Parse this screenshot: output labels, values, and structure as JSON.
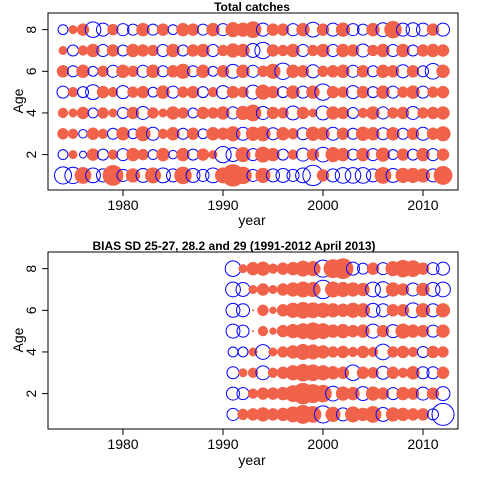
{
  "colors": {
    "positive": "#f0624a",
    "negative": "#0000ff",
    "axis": "#000000"
  },
  "chart_data": [
    {
      "type": "scatter",
      "title": "Total catches",
      "xlabel": "year",
      "ylabel": "Age",
      "xlim": [
        1972.5,
        2013.5
      ],
      "ylim": [
        0.3,
        8.8
      ],
      "xticks": [
        1980,
        1990,
        2000,
        2010
      ],
      "yticks": [
        2,
        4,
        6,
        8
      ],
      "years": [
        1974,
        1975,
        1976,
        1977,
        1978,
        1979,
        1980,
        1981,
        1982,
        1983,
        1984,
        1985,
        1986,
        1987,
        1988,
        1989,
        1990,
        1991,
        1992,
        1993,
        1994,
        1995,
        1996,
        1997,
        1998,
        1999,
        2000,
        2001,
        2002,
        2003,
        2004,
        2005,
        2006,
        2007,
        2008,
        2009,
        2010,
        2011,
        2012
      ],
      "ages": [
        1,
        2,
        3,
        4,
        5,
        6,
        7,
        8
      ],
      "residuals": {
        "1": [
          -0.6,
          -0.55,
          0.55,
          -0.45,
          -0.35,
          0.85,
          -0.3,
          0.4,
          -0.4,
          0.5,
          -0.45,
          -0.35,
          0.6,
          -0.4,
          -0.3,
          -0.45,
          0.5,
          1.0,
          0.6,
          -0.3,
          0.45,
          -0.35,
          -0.4,
          -0.3,
          -0.45,
          -0.85,
          0.3,
          -0.35,
          -0.5,
          -0.5,
          -0.5,
          -0.35,
          0.55,
          -0.4,
          0.45,
          0.45,
          0.4,
          -0.35,
          0.7
        ],
        "2": [
          -0.2,
          0.15,
          -0.1,
          0.3,
          -0.25,
          0.2,
          -0.3,
          0.35,
          0.25,
          -0.2,
          0.35,
          -0.15,
          0.35,
          -0.25,
          0.3,
          0.15,
          -0.55,
          -0.4,
          0.45,
          -0.3,
          0.5,
          0.35,
          -0.25,
          0.2,
          -0.35,
          0.3,
          -0.45,
          0.45,
          0.35,
          -0.25,
          0.35,
          -0.3,
          0.4,
          -0.2,
          0.3,
          -0.25,
          0.35,
          -0.3,
          0.3
        ],
        "3": [
          0.25,
          0.2,
          -0.15,
          0.3,
          0.2,
          -0.25,
          0.35,
          -0.2,
          0.45,
          -0.35,
          0.2,
          0.35,
          -0.25,
          0.3,
          -0.2,
          0.35,
          0.3,
          0.45,
          -0.35,
          0.4,
          0.45,
          -0.3,
          0.35,
          0.25,
          -0.3,
          0.4,
          0.35,
          -0.35,
          0.3,
          -0.25,
          0.4,
          0.35,
          -0.3,
          0.35,
          -0.25,
          0.3,
          -0.35,
          0.3,
          0.45
        ],
        "4": [
          0.2,
          0.15,
          0.3,
          -0.2,
          0.25,
          0.15,
          -0.25,
          0.3,
          -0.35,
          0.25,
          0.15,
          0.35,
          0.25,
          -0.2,
          0.3,
          0.25,
          0.35,
          -0.3,
          0.4,
          0.55,
          -0.35,
          0.3,
          0.25,
          -0.4,
          0.3,
          0.15,
          -0.4,
          0.35,
          0.3,
          -0.25,
          0.2,
          0.35,
          -0.3,
          0.25,
          0.3,
          -0.35,
          0.25,
          0.3,
          0.35
        ],
        "5": [
          -0.3,
          0.2,
          -0.25,
          -0.45,
          0.3,
          0.2,
          -0.35,
          0.25,
          0.3,
          -0.2,
          0.35,
          -0.3,
          0.25,
          0.3,
          -0.25,
          0.2,
          -0.35,
          0.3,
          0.25,
          -0.4,
          0.45,
          0.3,
          -0.25,
          0.35,
          -0.3,
          0.35,
          -0.55,
          0.3,
          0.25,
          -0.35,
          0.3,
          -0.25,
          0.35,
          -0.3,
          0.25,
          0.35,
          -0.3,
          0.25,
          0.3
        ],
        "6": [
          0.3,
          -0.25,
          0.35,
          -0.2,
          0.25,
          -0.3,
          0.35,
          0.25,
          -0.3,
          0.35,
          -0.25,
          0.3,
          0.45,
          -0.25,
          0.35,
          -0.2,
          0.3,
          -0.4,
          0.35,
          -0.3,
          0.25,
          0.45,
          -0.55,
          0.35,
          0.3,
          -0.35,
          0.25,
          0.3,
          0.35,
          -0.3,
          0.3,
          -0.25,
          0.35,
          0.3,
          -0.35,
          0.3,
          -0.25,
          -0.5,
          0.35
        ],
        "7": [
          0.15,
          -0.25,
          0.2,
          0.35,
          -0.3,
          0.3,
          -0.25,
          0.35,
          0.3,
          0.25,
          -0.3,
          0.35,
          -0.25,
          0.3,
          0.35,
          -0.3,
          0.25,
          0.4,
          0.35,
          -0.4,
          -0.55,
          0.3,
          0.25,
          0.35,
          -0.3,
          0.25,
          0.35,
          -0.3,
          0.35,
          0.3,
          -0.35,
          0.25,
          0.35,
          -0.3,
          0.35,
          -0.25,
          0.3,
          0.35,
          0.3
        ],
        "8": [
          -0.2,
          0.15,
          0.3,
          -0.5,
          -0.35,
          0.25,
          -0.3,
          -0.25,
          0.35,
          -0.25,
          0.3,
          -0.2,
          0.35,
          0.3,
          -0.25,
          0.35,
          -0.3,
          0.45,
          0.4,
          0.55,
          -0.35,
          0.3,
          0.3,
          -0.3,
          0.35,
          -0.45,
          0.3,
          -0.35,
          0.4,
          -0.3,
          -0.25,
          0.35,
          -0.4,
          0.6,
          -0.35,
          -0.4,
          -0.35,
          0.3,
          -0.35
        ]
      }
    },
    {
      "type": "scatter",
      "title": "BIAS SD 25-27, 28.2 and 29 (1991-2012 April 2013)",
      "xlabel": "year",
      "ylabel": "Age",
      "xlim": [
        1972.5,
        2013.5
      ],
      "ylim": [
        0.3,
        8.8
      ],
      "xticks": [
        1980,
        1990,
        2000,
        2010
      ],
      "yticks": [
        2,
        4,
        6,
        8
      ],
      "years": [
        1991,
        1992,
        1993,
        1994,
        1995,
        1996,
        1997,
        1998,
        1999,
        2000,
        2001,
        2002,
        2003,
        2004,
        2005,
        2006,
        2007,
        2008,
        2009,
        2010,
        2011,
        2012
      ],
      "ages": [
        1,
        2,
        3,
        4,
        5,
        6,
        7,
        8
      ],
      "residuals": {
        "1": [
          -0.3,
          0.25,
          0.3,
          0.4,
          0.3,
          0.35,
          0.5,
          0.7,
          0.55,
          -0.6,
          0.45,
          -0.35,
          0.5,
          0.35,
          0.55,
          -0.4,
          0.4,
          0.35,
          0.3,
          0.3,
          -0.25,
          -1.0
        ],
        "2": [
          -0.35,
          -0.3,
          0.2,
          0.3,
          0.3,
          0.35,
          0.55,
          0.9,
          0.7,
          0.6,
          -0.45,
          0.4,
          0.35,
          -0.4,
          0.4,
          0.3,
          -0.3,
          0.35,
          0.3,
          -0.35,
          0.3,
          -0.4
        ],
        "3": [
          -0.3,
          0.15,
          0.2,
          -0.4,
          0.2,
          0.3,
          0.45,
          0.6,
          0.55,
          0.45,
          0.35,
          0.3,
          -0.5,
          0.3,
          0.25,
          -0.35,
          0.3,
          0.2,
          0.35,
          -0.3,
          -0.3,
          0.3
        ],
        "4": [
          -0.2,
          -0.2,
          0.15,
          -0.45,
          0.15,
          0.25,
          0.35,
          0.5,
          0.45,
          0.35,
          0.25,
          0.3,
          0.2,
          0.3,
          0.2,
          -0.5,
          0.25,
          0.3,
          0.2,
          -0.25,
          0.3,
          0.25
        ],
        "5": [
          -0.4,
          -0.3,
          0.0,
          0.2,
          0.1,
          0.3,
          0.4,
          0.5,
          0.6,
          0.5,
          0.35,
          0.4,
          0.3,
          0.35,
          -0.4,
          0.3,
          -0.35,
          0.45,
          0.35,
          0.3,
          -0.3,
          0.35
        ],
        "6": [
          -0.4,
          -0.35,
          0.0,
          0.25,
          0.1,
          0.3,
          0.45,
          0.55,
          0.5,
          0.45,
          0.4,
          0.35,
          0.45,
          0.4,
          -0.4,
          -0.35,
          0.3,
          0.3,
          -0.45,
          0.4,
          -0.35,
          0.4
        ],
        "7": [
          -0.45,
          -0.4,
          0.15,
          0.3,
          0.15,
          0.3,
          0.4,
          0.5,
          0.45,
          -0.7,
          0.5,
          0.45,
          0.4,
          0.35,
          -0.45,
          -0.5,
          0.4,
          0.3,
          -0.35,
          0.35,
          -0.4,
          -0.45
        ],
        "8": [
          -0.5,
          0.15,
          0.35,
          0.4,
          0.2,
          0.3,
          0.35,
          0.5,
          0.45,
          -0.6,
          0.7,
          0.85,
          -0.35,
          -0.25,
          0.3,
          -0.3,
          0.45,
          0.6,
          0.55,
          0.3,
          -0.3,
          -0.35
        ]
      }
    }
  ]
}
